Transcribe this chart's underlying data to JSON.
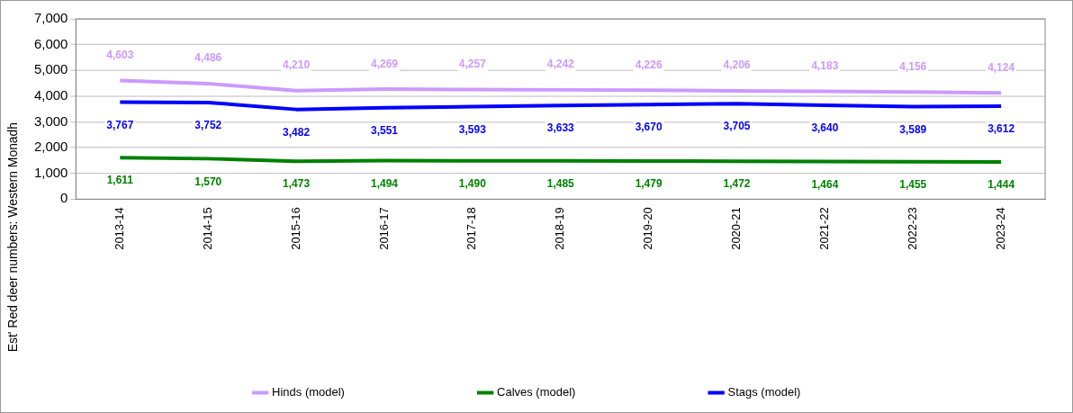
{
  "chart_data": {
    "type": "line",
    "ylabel": "Est' Red deer numbers: Western Monadh",
    "categories": [
      "2013-14",
      "2014-15",
      "2015-16",
      "2016-17",
      "2017-18",
      "2018-19",
      "2019-20",
      "2020-21",
      "2021-22",
      "2022-23",
      "2023-24"
    ],
    "series": [
      {
        "name": "Hinds (model)",
        "color": "#cc99ff",
        "values": [
          4603,
          4486,
          4210,
          4269,
          4257,
          4242,
          4226,
          4206,
          4183,
          4156,
          4124
        ],
        "value_labels": [
          "4,603",
          "4,486",
          "4,210",
          "4,269",
          "4,257",
          "4,242",
          "4,226",
          "4,206",
          "4,183",
          "4,156",
          "4,124"
        ]
      },
      {
        "name": "Calves (model)",
        "color": "#008000",
        "values": [
          1611,
          1570,
          1473,
          1494,
          1490,
          1485,
          1479,
          1472,
          1464,
          1455,
          1444
        ],
        "value_labels": [
          "1,611",
          "1,570",
          "1,473",
          "1,494",
          "1,490",
          "1,485",
          "1,479",
          "1,472",
          "1,464",
          "1,455",
          "1,444"
        ]
      },
      {
        "name": "Stags (model)",
        "color": "#0000ff",
        "values": [
          3767,
          3752,
          3482,
          3551,
          3593,
          3633,
          3670,
          3705,
          3640,
          3589,
          3612
        ],
        "value_labels": [
          "3,767",
          "3,752",
          "3,482",
          "3,551",
          "3,593",
          "3,633",
          "3,670",
          "3,705",
          "3,640",
          "3,589",
          "3,612"
        ]
      }
    ],
    "ylim": [
      0,
      7000
    ],
    "yticks": [
      0,
      {
        "value": 1000,
        "label": "1,000"
      },
      {
        "value": 2000,
        "label": "2,000"
      },
      {
        "value": 3000,
        "label": "3,000"
      },
      {
        "value": 4000,
        "label": "4,000"
      },
      {
        "value": 5000,
        "label": "5,000"
      },
      {
        "value": 6000,
        "label": "6,000"
      },
      {
        "value": 7000,
        "label": "7,000"
      }
    ],
    "grid": "y",
    "legend": "bottom",
    "marker": "none",
    "line_style": "solid"
  }
}
